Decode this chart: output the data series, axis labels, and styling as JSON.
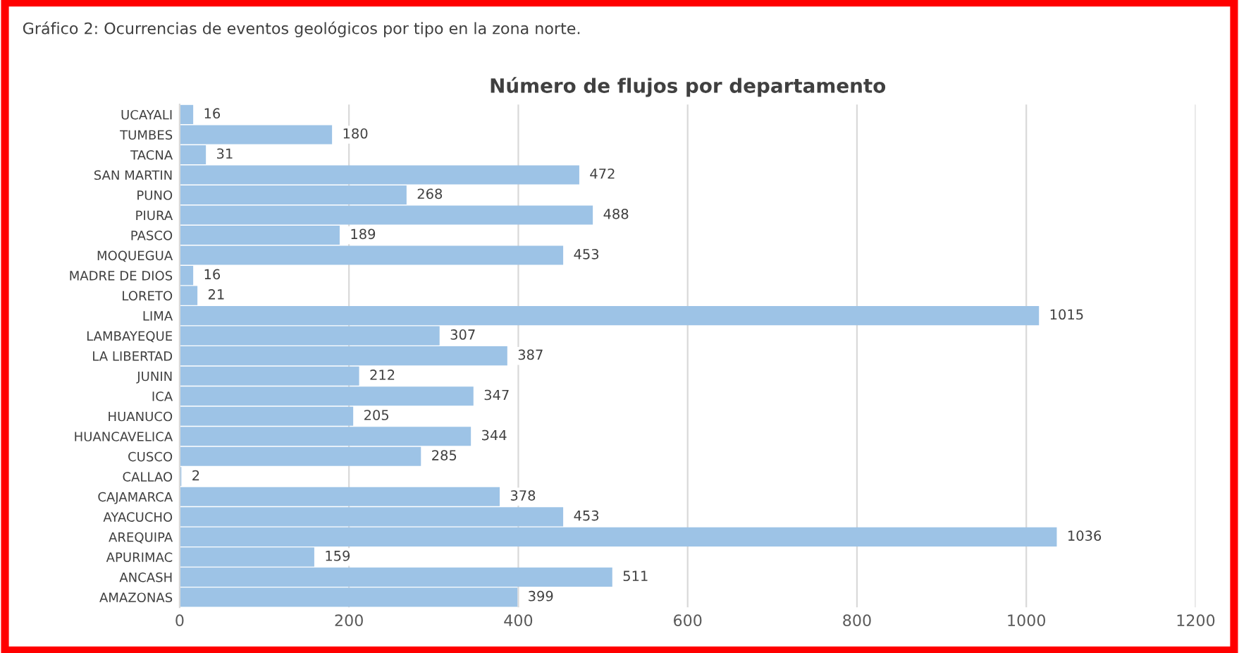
{
  "chart_data": {
    "type": "bar",
    "orientation": "horizontal",
    "title": "Número de flujos por departamento",
    "annotations": [
      "Gráfico 2: Ocurrencias de eventos geológicos por tipo en la zona norte."
    ],
    "categories": [
      "UCAYALI",
      "TUMBES",
      "TACNA",
      "SAN MARTIN",
      "PUNO",
      "PIURA",
      "PASCO",
      "MOQUEGUA",
      "MADRE DE DIOS",
      "LORETO",
      "LIMA",
      "LAMBAYEQUE",
      "LA LIBERTAD",
      "JUNIN",
      "ICA",
      "HUANUCO",
      "HUANCAVELICA",
      "CUSCO",
      "CALLAO",
      "CAJAMARCA",
      "AYACUCHO",
      "AREQUIPA",
      "APURIMAC",
      "ANCASH",
      "AMAZONAS"
    ],
    "values": [
      16,
      180,
      31,
      472,
      268,
      488,
      189,
      453,
      16,
      21,
      1015,
      307,
      387,
      212,
      347,
      205,
      344,
      285,
      2,
      378,
      453,
      1036,
      159,
      511,
      399
    ],
    "color": "#9dc3e6",
    "data_labels": true,
    "xlim": [
      0,
      1200
    ],
    "xticks": [
      0,
      200,
      400,
      600,
      800,
      1000,
      1200
    ],
    "grid": "x"
  }
}
